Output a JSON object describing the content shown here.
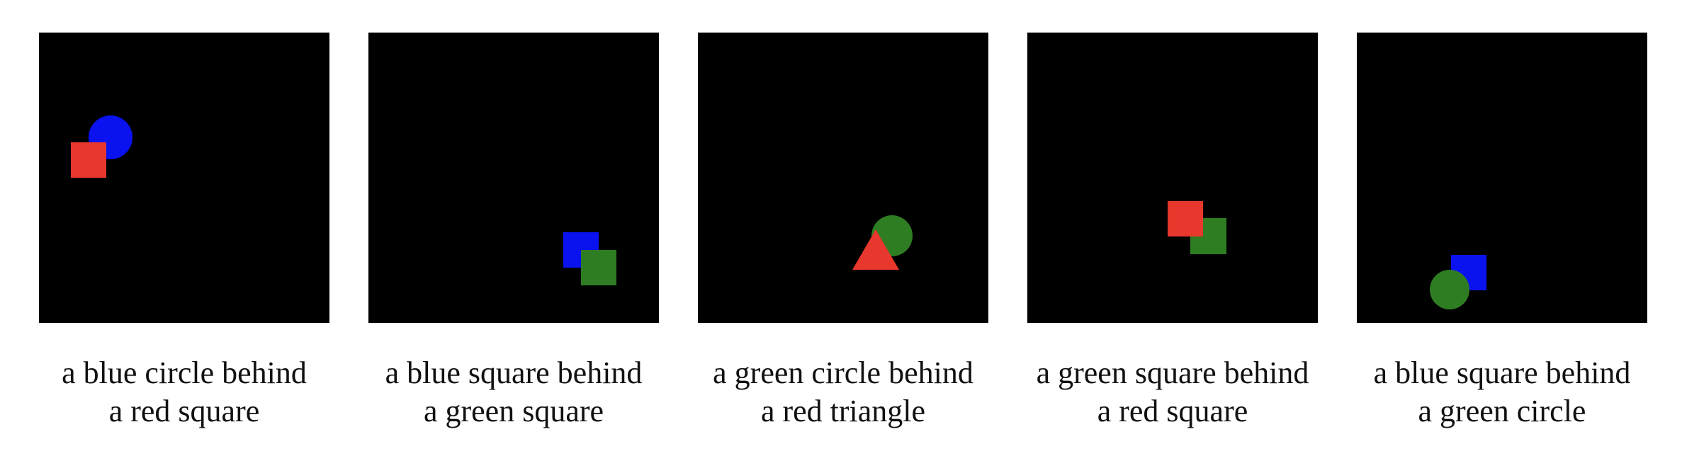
{
  "colors": {
    "background": "#000000",
    "red": "#e8372c",
    "blue": "#0a12f0",
    "green": "#2f7d23"
  },
  "panels": [
    {
      "caption_line1": "a blue circle behind",
      "caption_line2": "a red square",
      "back_shape": "blue-circle",
      "front_shape": "red-square"
    },
    {
      "caption_line1": "a blue square behind",
      "caption_line2": "a green square",
      "back_shape": "blue-square",
      "front_shape": "green-square"
    },
    {
      "caption_line1": "a green circle behind",
      "caption_line2": "a red triangle",
      "back_shape": "green-circle",
      "front_shape": "red-triangle"
    },
    {
      "caption_line1": "a green square behind",
      "caption_line2": "a red square",
      "back_shape": "green-square",
      "front_shape": "red-square"
    },
    {
      "caption_line1": "a blue square behind",
      "caption_line2": "a green circle",
      "back_shape": "blue-square",
      "front_shape": "green-circle"
    }
  ]
}
